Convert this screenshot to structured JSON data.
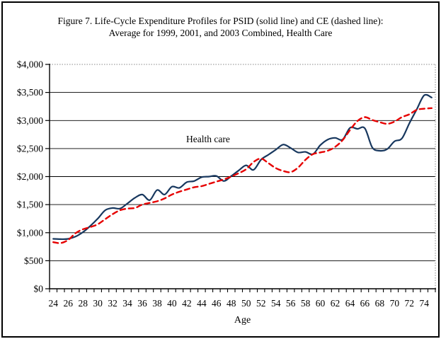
{
  "figure": {
    "title_line1": "Figure 7. Life-Cycle Expenditure Profiles for PSID (solid line) and CE (dashed line):",
    "title_line2": "Average for 1999, 2001, and 2003 Combined, Health Care"
  },
  "chart_data": {
    "type": "line",
    "title": "Figure 7. Life-Cycle Expenditure Profiles for PSID (solid line) and CE (dashed line): Average for 1999, 2001, and 2003 Combined, Health Care",
    "annotation": "Health care",
    "xlabel": "Age",
    "ylabel": "",
    "ylim": [
      0,
      4000
    ],
    "grid": "horizontal",
    "legend_position": "none",
    "plot_border_color": "#888888",
    "x": [
      24,
      25,
      26,
      27,
      28,
      29,
      30,
      31,
      32,
      33,
      34,
      35,
      36,
      37,
      38,
      39,
      40,
      41,
      42,
      43,
      44,
      45,
      46,
      47,
      48,
      49,
      50,
      51,
      52,
      53,
      54,
      55,
      56,
      57,
      58,
      59,
      60,
      61,
      62,
      63,
      64,
      65,
      66,
      67,
      68,
      69,
      70,
      71,
      72,
      73,
      74,
      75
    ],
    "x_tick_labels": [
      "24",
      "26",
      "28",
      "30",
      "32",
      "34",
      "36",
      "38",
      "40",
      "42",
      "44",
      "46",
      "48",
      "50",
      "52",
      "54",
      "56",
      "58",
      "60",
      "62",
      "64",
      "66",
      "68",
      "70",
      "72",
      "74"
    ],
    "y_ticks": [
      0,
      500,
      1000,
      1500,
      2000,
      2500,
      3000,
      3500,
      4000
    ],
    "y_tick_labels": [
      "$0",
      "$500",
      "$1,000",
      "$1,500",
      "$2,000",
      "$2,500",
      "$3,000",
      "$3,500",
      "$4,000"
    ],
    "series": [
      {
        "name": "PSID",
        "style": "solid",
        "color": "#17375e",
        "width": 2.2,
        "values": [
          890,
          885,
          890,
          930,
          1010,
          1120,
          1250,
          1400,
          1440,
          1430,
          1520,
          1620,
          1680,
          1580,
          1760,
          1680,
          1820,
          1800,
          1900,
          1920,
          1990,
          2000,
          2010,
          1920,
          2010,
          2110,
          2200,
          2120,
          2300,
          2390,
          2480,
          2570,
          2510,
          2430,
          2440,
          2400,
          2560,
          2660,
          2690,
          2660,
          2870,
          2850,
          2860,
          2520,
          2460,
          2490,
          2630,
          2680,
          2950,
          3200,
          3450,
          3410
        ]
      },
      {
        "name": "CE",
        "style": "dashed",
        "color": "#e60000",
        "width": 2.4,
        "values": [
          830,
          815,
          870,
          990,
          1060,
          1100,
          1150,
          1240,
          1330,
          1400,
          1430,
          1440,
          1500,
          1530,
          1560,
          1610,
          1680,
          1730,
          1770,
          1810,
          1830,
          1870,
          1910,
          1950,
          2000,
          2060,
          2130,
          2260,
          2320,
          2240,
          2150,
          2100,
          2080,
          2160,
          2300,
          2400,
          2430,
          2460,
          2530,
          2650,
          2830,
          2990,
          3060,
          3010,
          2970,
          2940,
          2980,
          3060,
          3110,
          3190,
          3210,
          3220
        ]
      }
    ]
  }
}
